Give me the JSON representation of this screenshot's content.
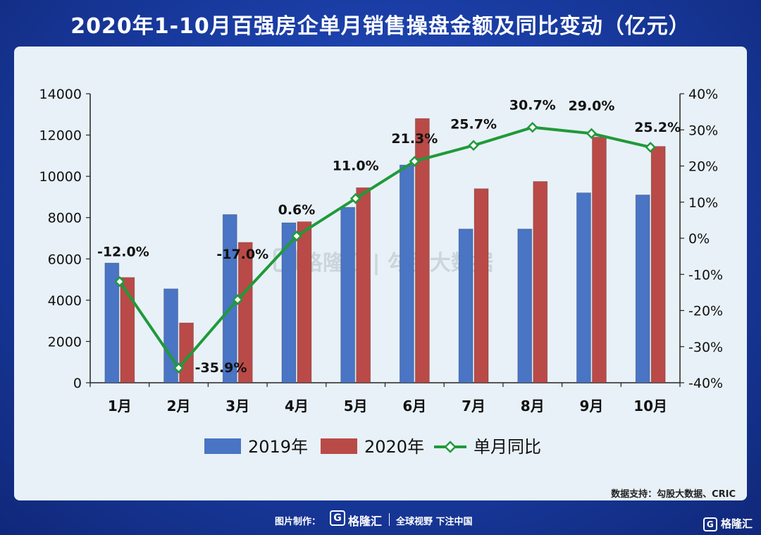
{
  "title": "2020年1-10月百强房企单月销售操盘金额及同比变动（亿元）",
  "watermark": "格隆汇 | 勾股大数据",
  "source": "数据支持：勾股大数据、CRIC",
  "footer": {
    "made_by": "图片制作：",
    "logo_letter": "G",
    "brand": "格隆汇",
    "slogan": "全球视野 下注中国"
  },
  "corner_brand": "格隆汇",
  "colors": {
    "series2019": "#4a74c4",
    "series2020": "#b94a47",
    "yoy": "#1f9a3a"
  },
  "chart_data": {
    "type": "bar+line",
    "categories": [
      "1月",
      "2月",
      "3月",
      "4月",
      "5月",
      "6月",
      "7月",
      "8月",
      "9月",
      "10月"
    ],
    "series": [
      {
        "name": "2019年",
        "type": "bar",
        "axis": "left",
        "values": [
          5800,
          4550,
          8150,
          7750,
          8500,
          10550,
          7450,
          7450,
          9200,
          9100
        ]
      },
      {
        "name": "2020年",
        "type": "bar",
        "axis": "left",
        "values": [
          5100,
          2900,
          6800,
          7800,
          9450,
          12800,
          9400,
          9750,
          11900,
          11450
        ]
      },
      {
        "name": "单月同比",
        "type": "line",
        "axis": "right",
        "values": [
          -12.0,
          -35.9,
          -17.0,
          0.6,
          11.0,
          21.3,
          25.7,
          30.7,
          29.0,
          25.2
        ],
        "labels": [
          "-12.0%",
          "-35.9%",
          "-17.0%",
          "0.6%",
          "11.0%",
          "21.3%",
          "25.7%",
          "30.7%",
          "29.0%",
          "25.2%"
        ]
      }
    ],
    "yleft": {
      "min": 0,
      "max": 14000,
      "ticks": [
        "0",
        "2000",
        "4000",
        "6000",
        "8000",
        "10000",
        "12000",
        "14000"
      ]
    },
    "yright": {
      "min": -40,
      "max": 40,
      "ticks": [
        "-40%",
        "-30%",
        "-20%",
        "-10%",
        "0%",
        "10%",
        "20%",
        "30%",
        "40%"
      ]
    },
    "legend": [
      "2019年",
      "2020年",
      "单月同比"
    ],
    "legend_position": "bottom"
  }
}
